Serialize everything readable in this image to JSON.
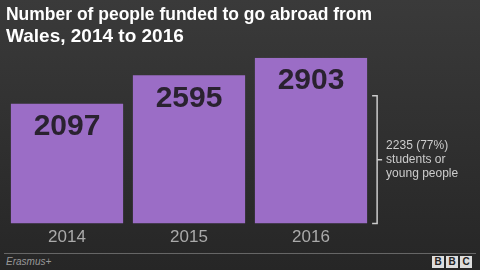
{
  "chart_data": {
    "type": "bar",
    "title": [
      "Number of people funded to go abroad from",
      "Wales, 2014 to 2016"
    ],
    "categories": [
      "2014",
      "2015",
      "2016"
    ],
    "values": [
      2097,
      2595,
      2903
    ],
    "color": "#9b6dc6",
    "ylim": [
      0,
      2903
    ],
    "grid": false,
    "data_labels": true,
    "tick_labels": "x",
    "annotation": {
      "text": [
        "2235 (77%)",
        "students or",
        "young people"
      ],
      "value": 2235
    },
    "source": "Erasmus+",
    "logo": "BBC"
  }
}
